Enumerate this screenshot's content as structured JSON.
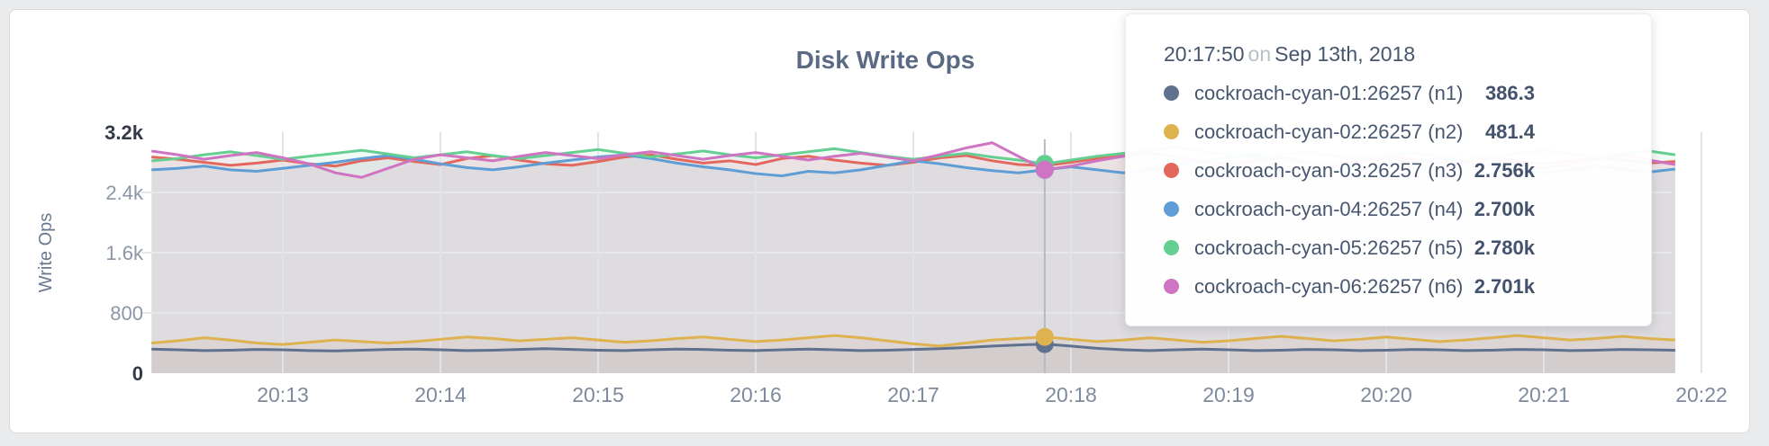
{
  "panel": {
    "title": "Disk Write Ops"
  },
  "colors": {
    "n1": "#5f718f",
    "n2": "#deb24e",
    "n3": "#e2685e",
    "n4": "#5f9ed4",
    "n5": "#65cf92",
    "n6": "#ce74c2"
  },
  "tooltip": {
    "time": "20:17:50",
    "conjunction": "on",
    "date": "Sep 13th, 2018",
    "rows": [
      {
        "name": "cockroach-cyan-01:26257 (n1)",
        "value": "386.3",
        "color": "#5f718f"
      },
      {
        "name": "cockroach-cyan-02:26257 (n2)",
        "value": "481.4",
        "color": "#deb24e"
      },
      {
        "name": "cockroach-cyan-03:26257 (n3)",
        "value": "2.756k",
        "color": "#e2685e"
      },
      {
        "name": "cockroach-cyan-04:26257 (n4)",
        "value": "2.700k",
        "color": "#5f9ed4"
      },
      {
        "name": "cockroach-cyan-05:26257 (n5)",
        "value": "2.780k",
        "color": "#65cf92"
      },
      {
        "name": "cockroach-cyan-06:26257 (n6)",
        "value": "2.701k",
        "color": "#ce74c2"
      }
    ]
  },
  "chart_data": {
    "type": "line",
    "title": "Disk Write Ops",
    "ylabel": "Write Ops",
    "xlabel": "",
    "ylim": [
      0,
      3200
    ],
    "grid": true,
    "legend_position": "tooltip-overlay",
    "x_start": "20:12:10",
    "x_step_seconds": 10,
    "x_ticks": [
      "20:13",
      "20:14",
      "20:15",
      "20:16",
      "20:17",
      "20:18",
      "20:19",
      "20:20",
      "20:21",
      "20:22"
    ],
    "y_ticks": [
      {
        "label": "0",
        "value": 0,
        "emphasis": true
      },
      {
        "label": "800",
        "value": 800,
        "emphasis": false
      },
      {
        "label": "1.6k",
        "value": 1600,
        "emphasis": false
      },
      {
        "label": "2.4k",
        "value": 2400,
        "emphasis": false
      },
      {
        "label": "3.2k",
        "value": 3200,
        "emphasis": true
      }
    ],
    "hover_index": 34,
    "hover_time": "20:17:50",
    "series": [
      {
        "id": "n1",
        "name": "cockroach-cyan-01:26257 (n1)",
        "color": "#5f718f",
        "hover_value": 386.3,
        "values": [
          320,
          310,
          300,
          305,
          315,
          310,
          300,
          295,
          305,
          315,
          320,
          310,
          300,
          305,
          315,
          325,
          315,
          305,
          300,
          310,
          320,
          315,
          305,
          300,
          310,
          320,
          310,
          300,
          305,
          315,
          325,
          340,
          360,
          375,
          386.3,
          360,
          330,
          310,
          300,
          310,
          320,
          310,
          300,
          305,
          315,
          310,
          300,
          305,
          315,
          310,
          300,
          305,
          315,
          310,
          300,
          305,
          315,
          310,
          305
        ]
      },
      {
        "id": "n2",
        "name": "cockroach-cyan-02:26257 (n2)",
        "color": "#deb24e",
        "hover_value": 481.4,
        "values": [
          400,
          430,
          470,
          440,
          400,
          380,
          410,
          440,
          420,
          400,
          420,
          450,
          480,
          460,
          430,
          450,
          470,
          440,
          410,
          430,
          460,
          480,
          450,
          420,
          440,
          470,
          500,
          470,
          430,
          390,
          360,
          400,
          440,
          460,
          481.4,
          450,
          420,
          440,
          470,
          440,
          410,
          430,
          460,
          490,
          460,
          430,
          450,
          480,
          450,
          420,
          440,
          470,
          500,
          470,
          440,
          460,
          490,
          460,
          440
        ]
      },
      {
        "id": "n3",
        "name": "cockroach-cyan-03:26257 (n3)",
        "color": "#e2685e",
        "hover_value": 2756,
        "values": [
          2870,
          2840,
          2800,
          2760,
          2790,
          2830,
          2780,
          2750,
          2820,
          2860,
          2810,
          2770,
          2850,
          2890,
          2830,
          2780,
          2760,
          2810,
          2870,
          2900,
          2840,
          2790,
          2820,
          2770,
          2850,
          2880,
          2830,
          2790,
          2760,
          2800,
          2860,
          2890,
          2820,
          2770,
          2756,
          2800,
          2850,
          2890,
          2930,
          2870,
          2810,
          2780,
          2830,
          2860,
          2800,
          2770,
          2820,
          2880,
          2840,
          2790,
          2830,
          2870,
          2810,
          2780,
          2820,
          2860,
          2830,
          2790,
          2810
        ]
      },
      {
        "id": "n4",
        "name": "cockroach-cyan-04:26257 (n4)",
        "color": "#5f9ed4",
        "hover_value": 2700,
        "values": [
          2700,
          2720,
          2750,
          2700,
          2680,
          2720,
          2760,
          2800,
          2850,
          2890,
          2840,
          2780,
          2730,
          2700,
          2740,
          2790,
          2830,
          2870,
          2900,
          2850,
          2790,
          2740,
          2700,
          2650,
          2620,
          2680,
          2660,
          2700,
          2760,
          2820,
          2780,
          2730,
          2690,
          2660,
          2700,
          2740,
          2700,
          2660,
          2700,
          2760,
          2820,
          2870,
          2910,
          2860,
          2800,
          2750,
          2710,
          2760,
          2810,
          2850,
          2800,
          2750,
          2700,
          2660,
          2700,
          2750,
          2710,
          2670,
          2710
        ]
      },
      {
        "id": "n5",
        "name": "cockroach-cyan-05:26257 (n5)",
        "color": "#65cf92",
        "hover_value": 2780,
        "values": [
          2820,
          2850,
          2900,
          2940,
          2890,
          2840,
          2880,
          2920,
          2960,
          2910,
          2860,
          2900,
          2940,
          2890,
          2850,
          2890,
          2930,
          2970,
          2920,
          2870,
          2910,
          2950,
          2900,
          2860,
          2900,
          2940,
          2980,
          2930,
          2880,
          2840,
          2880,
          2920,
          2870,
          2830,
          2780,
          2830,
          2880,
          2920,
          2960,
          3000,
          2950,
          2900,
          2860,
          2900,
          2940,
          2890,
          2850,
          2890,
          2930,
          2880,
          2840,
          2880,
          2920,
          2960,
          2910,
          2870,
          2910,
          2950,
          2900
        ]
      },
      {
        "id": "n6",
        "name": "cockroach-cyan-06:26257 (n6)",
        "color": "#ce74c2",
        "hover_value": 2701,
        "values": [
          2950,
          2900,
          2840,
          2890,
          2930,
          2860,
          2780,
          2660,
          2600,
          2720,
          2840,
          2900,
          2860,
          2820,
          2880,
          2930,
          2890,
          2850,
          2900,
          2940,
          2890,
          2840,
          2890,
          2930,
          2880,
          2830,
          2880,
          2920,
          2870,
          2820,
          2900,
          2990,
          3060,
          2880,
          2701,
          2750,
          2820,
          2880,
          2930,
          2870,
          2800,
          2750,
          2810,
          2870,
          2800,
          2740,
          2800,
          2860,
          2790,
          2730,
          2790,
          2850,
          2780,
          2720,
          2780,
          2840,
          2900,
          2830,
          2770
        ]
      }
    ]
  }
}
